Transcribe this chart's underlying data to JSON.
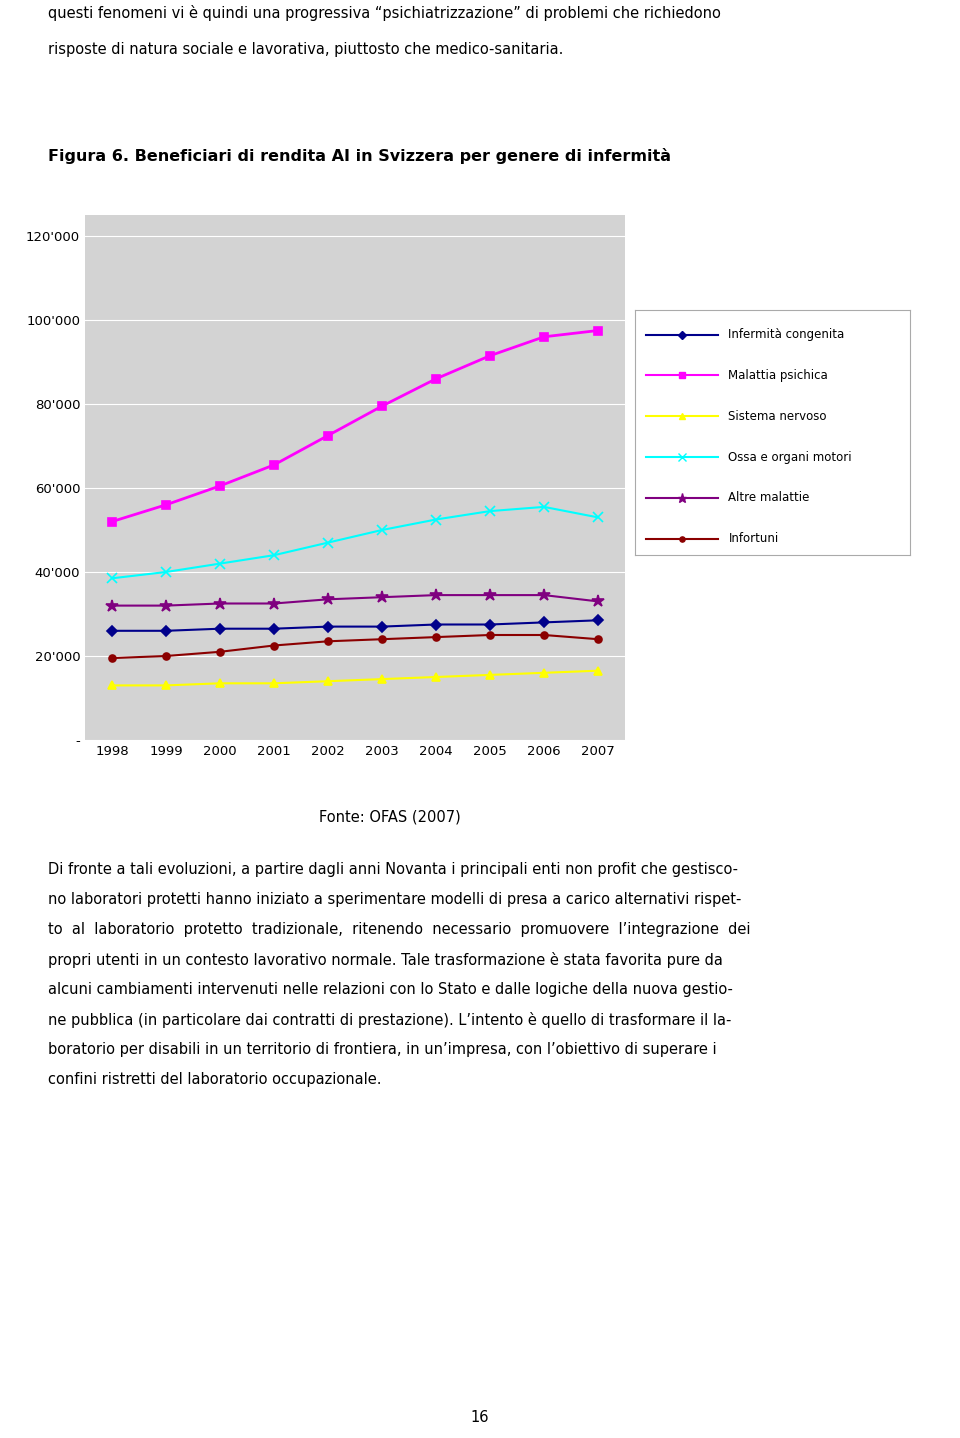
{
  "title": "Figura 6. Beneficiari di rendita AI in Svizzera per genere di infermità",
  "fonte": "Fonte: OFAS (2007)",
  "years": [
    1998,
    1999,
    2000,
    2001,
    2002,
    2003,
    2004,
    2005,
    2006,
    2007
  ],
  "series": {
    "Infermità congenita": {
      "values": [
        26000,
        26000,
        26500,
        26500,
        27000,
        27000,
        27500,
        27500,
        28000,
        28500
      ],
      "color": "#00008B",
      "marker": "D",
      "linewidth": 1.5,
      "markersize": 5
    },
    "Malattia psichica": {
      "values": [
        52000,
        56000,
        60500,
        65500,
        72500,
        79500,
        86000,
        91500,
        96000,
        97500
      ],
      "color": "#FF00FF",
      "marker": "s",
      "linewidth": 2.0,
      "markersize": 6
    },
    "Sistema nervoso": {
      "values": [
        13000,
        13000,
        13500,
        13500,
        14000,
        14500,
        15000,
        15500,
        16000,
        16500
      ],
      "color": "#FFFF00",
      "marker": "^",
      "linewidth": 1.5,
      "markersize": 6
    },
    "Ossa e organi motori": {
      "values": [
        38500,
        40000,
        42000,
        44000,
        47000,
        50000,
        52500,
        54500,
        55500,
        53000
      ],
      "color": "#00FFFF",
      "marker": "x",
      "linewidth": 1.5,
      "markersize": 7
    },
    "Altre malattie": {
      "values": [
        32000,
        32000,
        32500,
        32500,
        33500,
        34000,
        34500,
        34500,
        34500,
        33000
      ],
      "color": "#800080",
      "marker": "*",
      "linewidth": 1.5,
      "markersize": 9
    },
    "Infortuni": {
      "values": [
        19500,
        20000,
        21000,
        22500,
        23500,
        24000,
        24500,
        25000,
        25000,
        24000
      ],
      "color": "#8B0000",
      "marker": "o",
      "linewidth": 1.5,
      "markersize": 5
    }
  },
  "yticks": [
    0,
    20000,
    40000,
    60000,
    80000,
    100000,
    120000
  ],
  "ytick_labels": [
    "-",
    "20'000",
    "40'000",
    "60'000",
    "80'000",
    "100'000",
    "120'000"
  ],
  "ylim": [
    0,
    125000
  ],
  "xlim": [
    1997.5,
    2007.5
  ],
  "chart_bg": "#D3D3D3",
  "page_bg": "#FFFFFF",
  "grid_color": "#FFFFFF",
  "legend_series_order": [
    "Infermità congenita",
    "Malattia psichica",
    "Sistema nervoso",
    "Ossa e organi motori",
    "Altre malattie",
    "Infortuni"
  ],
  "top_line1": "questi fenomeni vi è quindi una progressiva “psichiatrizzazione” di problemi che richiedono",
  "top_line2": "risposte di natura sociale e lavorativa, piuttosto che medico-sanitaria.",
  "fonte_text": "Fonte: OFAS (2007)",
  "body_lines": [
    "Di fronte a tali evoluzioni, a partire dagli anni Novanta i principali enti non profit che gestisco-",
    "no laboratori protetti hanno iniziato a sperimentare modelli di presa a carico alternativi rispet-",
    "to  al  laboratorio  protetto  tradizionale,  ritenendo  necessario  promuovere  l’integrazione  dei",
    "propri utenti in un contesto lavorativo normale. Tale trasformazione è stata favorita pure da",
    "alcuni cambiamenti intervenuti nelle relazioni con lo Stato e dalle logiche della nuova gestio-",
    "ne pubblica (in particolare dai contratti di prestazione). L’intento è quello di trasformare il la-",
    "boratorio per disabili in un territorio di frontiera, in un’impresa, con l’obiettivo di superare i",
    "confini ristretti del laboratorio occupazionale."
  ],
  "page_number": "16",
  "font_size_text": 10.5,
  "font_size_title": 11.5,
  "font_size_axis": 9.5
}
